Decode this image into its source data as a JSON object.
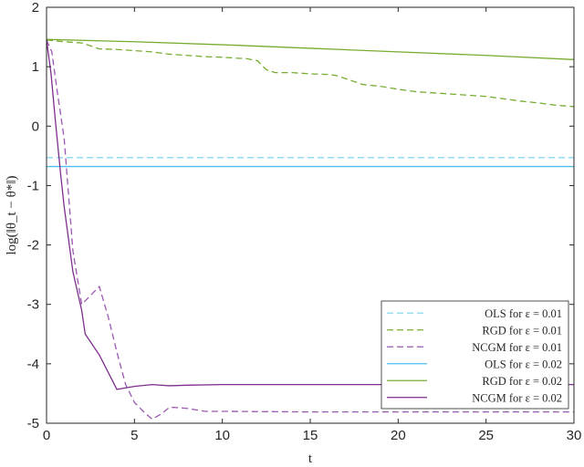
{
  "chart_data": {
    "type": "line",
    "xlabel": "t",
    "ylabel": "log(‖θ_t − θ*‖)",
    "xlim": [
      0,
      30
    ],
    "ylim": [
      -5,
      2
    ],
    "xticks": [
      0,
      5,
      10,
      15,
      20,
      25,
      30
    ],
    "xtick_labels": [
      "0",
      "5",
      "10",
      "15",
      "20",
      "25",
      "30"
    ],
    "yticks": [
      2,
      1,
      0,
      -1,
      -2,
      -3,
      -4,
      -5
    ],
    "ytick_labels": [
      "2",
      "1",
      "0",
      "-1",
      "-2",
      "-3",
      "-4",
      "-5"
    ],
    "grid": false,
    "legend_position": "bottom-right",
    "series": [
      {
        "name": "OLS for ε = 0.01",
        "color": "#8ad8ee",
        "dash": "dashed",
        "points": [
          [
            0,
            -0.53
          ],
          [
            30,
            -0.53
          ]
        ]
      },
      {
        "name": "RGD for ε = 0.01",
        "color": "#77ac30",
        "dash": "dashed",
        "points": [
          [
            0,
            1.45
          ],
          [
            1,
            1.42
          ],
          [
            2,
            1.4
          ],
          [
            3,
            1.3
          ],
          [
            4,
            1.29
          ],
          [
            5,
            1.27
          ],
          [
            6,
            1.25
          ],
          [
            7,
            1.21
          ],
          [
            8,
            1.19
          ],
          [
            9,
            1.17
          ],
          [
            10,
            1.16
          ],
          [
            11,
            1.14
          ],
          [
            11.3,
            1.14
          ],
          [
            12,
            1.1
          ],
          [
            12.5,
            0.95
          ],
          [
            13,
            0.9
          ],
          [
            14,
            0.9
          ],
          [
            15,
            0.88
          ],
          [
            16,
            0.87
          ],
          [
            16.5,
            0.85
          ],
          [
            17,
            0.8
          ],
          [
            17.8,
            0.72
          ],
          [
            18,
            0.7
          ],
          [
            19,
            0.67
          ],
          [
            20,
            0.62
          ],
          [
            21,
            0.58
          ],
          [
            22,
            0.56
          ],
          [
            23,
            0.54
          ],
          [
            24,
            0.52
          ],
          [
            25,
            0.5
          ],
          [
            26,
            0.46
          ],
          [
            27,
            0.42
          ],
          [
            28,
            0.39
          ],
          [
            29,
            0.35
          ],
          [
            30,
            0.33
          ]
        ]
      },
      {
        "name": "NCGM for ε = 0.01",
        "color": "#9a58b2",
        "dash": "dashed",
        "points": [
          [
            0,
            1.45
          ],
          [
            0.3,
            1.25
          ],
          [
            0.6,
            0.6
          ],
          [
            1,
            -0.2
          ],
          [
            1.5,
            -2.1
          ],
          [
            2,
            -3.0
          ],
          [
            2.5,
            -2.85
          ],
          [
            3,
            -2.7
          ],
          [
            3.5,
            -3.2
          ],
          [
            4,
            -3.8
          ],
          [
            4.5,
            -4.35
          ],
          [
            5,
            -4.65
          ],
          [
            5.5,
            -4.8
          ],
          [
            6,
            -4.93
          ],
          [
            6.5,
            -4.85
          ],
          [
            7,
            -4.73
          ],
          [
            8,
            -4.75
          ],
          [
            9,
            -4.8
          ],
          [
            10,
            -4.8
          ],
          [
            15,
            -4.81
          ],
          [
            20,
            -4.81
          ],
          [
            25,
            -4.81
          ],
          [
            30,
            -4.81
          ]
        ]
      },
      {
        "name": "OLS for ε = 0.02",
        "color": "#4dbeee",
        "dash": "solid",
        "points": [
          [
            0,
            -0.68
          ],
          [
            30,
            -0.68
          ]
        ]
      },
      {
        "name": "RGD for ε = 0.02",
        "color": "#77ac30",
        "dash": "solid",
        "points": [
          [
            0,
            1.46
          ],
          [
            5,
            1.42
          ],
          [
            10,
            1.37
          ],
          [
            15,
            1.31
          ],
          [
            20,
            1.25
          ],
          [
            25,
            1.19
          ],
          [
            30,
            1.12
          ]
        ]
      },
      {
        "name": "NCGM for ε = 0.02",
        "color": "#7e2f8e",
        "dash": "solid",
        "points": [
          [
            0,
            1.45
          ],
          [
            0.25,
            0.9
          ],
          [
            0.5,
            0.1
          ],
          [
            0.8,
            -0.8
          ],
          [
            1,
            -1.35
          ],
          [
            1.5,
            -2.45
          ],
          [
            2,
            -3.1
          ],
          [
            2.2,
            -3.5
          ],
          [
            3,
            -3.85
          ],
          [
            4,
            -4.43
          ],
          [
            5,
            -4.38
          ],
          [
            6,
            -4.35
          ],
          [
            7,
            -4.37
          ],
          [
            8,
            -4.36
          ],
          [
            10,
            -4.35
          ],
          [
            15,
            -4.35
          ],
          [
            20,
            -4.35
          ],
          [
            25,
            -4.35
          ],
          [
            30,
            -4.35
          ]
        ]
      }
    ]
  }
}
